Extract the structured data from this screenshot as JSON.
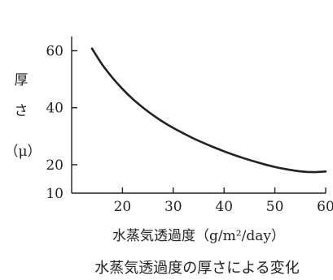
{
  "chart_data": {
    "type": "line",
    "title": "",
    "caption": "水蒸気透過度の厚さによる変化",
    "xlabel": "水蒸気透過度（g/m²/day）",
    "ylabel": "厚さ（μ）",
    "ylabel_lines": [
      "厚",
      "さ",
      "（μ）"
    ],
    "xlim": [
      10,
      60
    ],
    "ylim": [
      10,
      65
    ],
    "x_ticks": [
      20,
      30,
      40,
      50,
      60
    ],
    "y_ticks": [
      10,
      20,
      40,
      60
    ],
    "grid": false,
    "legend": "none",
    "series": [
      {
        "color": "#222222",
        "x": [
          14,
          16,
          18,
          20,
          22,
          24,
          26,
          28,
          30,
          32,
          34,
          36,
          38,
          40,
          42,
          44,
          46,
          48,
          50,
          52,
          54,
          56,
          58,
          60
        ],
        "y": [
          60.8,
          55.2,
          50.6,
          46.6,
          43.1,
          40.1,
          37.4,
          35.0,
          32.9,
          31.0,
          29.2,
          27.6,
          26.1,
          24.7,
          23.4,
          22.2,
          21.1,
          20.1,
          19.2,
          18.5,
          17.9,
          17.5,
          17.4,
          17.6
        ]
      }
    ]
  }
}
